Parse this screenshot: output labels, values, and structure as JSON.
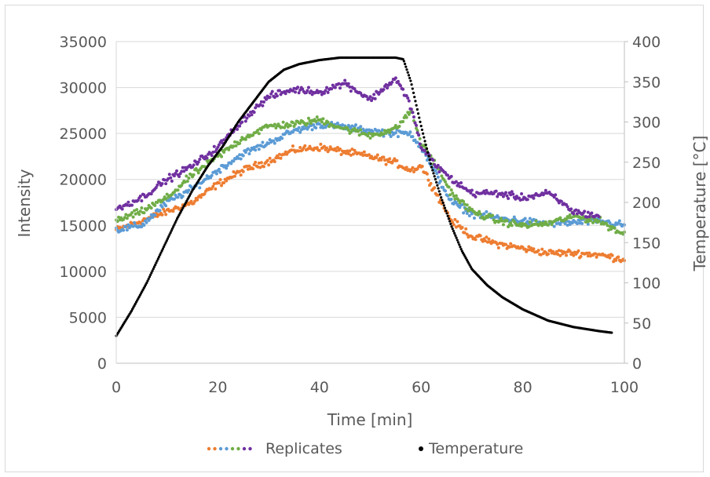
{
  "chart_data": {
    "type": "scatter",
    "title": "",
    "xlabel": "Time [min]",
    "ylabel": "Intensity",
    "y2label": "Temperature [°C]",
    "xlim": [
      0,
      100
    ],
    "ylim": [
      0,
      35000
    ],
    "y2lim": [
      0,
      400
    ],
    "x_ticks": [
      "0",
      "20",
      "40",
      "60",
      "80",
      "100"
    ],
    "y_ticks": [
      "0",
      "5000",
      "10000",
      "15000",
      "20000",
      "25000",
      "30000",
      "35000"
    ],
    "y2_ticks": [
      "0",
      "50",
      "100",
      "150",
      "200",
      "250",
      "300",
      "350",
      "400"
    ],
    "grid": "horizontal",
    "legend_position": "bottom",
    "legend": {
      "replicates": "Replicates",
      "temperature": "Temperature"
    },
    "colors": {
      "orange": "#ed7d31",
      "blue": "#5b9bd5",
      "green": "#70ad47",
      "purple": "#7030a0",
      "temperature": "#000000"
    },
    "series": [
      {
        "axis": "left",
        "color": "#ed7d31",
        "x": [
          0,
          5,
          10,
          15,
          20,
          25,
          30,
          35,
          40,
          45,
          50,
          55,
          58,
          60,
          63,
          66,
          70,
          75,
          80,
          85,
          90,
          95,
          100
        ],
        "y": [
          14500,
          15500,
          16500,
          17500,
          19500,
          21000,
          22000,
          23200,
          23500,
          23000,
          22500,
          21800,
          21000,
          21500,
          18500,
          15500,
          13800,
          13000,
          12500,
          12000,
          12000,
          11800,
          11300
        ]
      },
      {
        "axis": "left",
        "color": "#5b9bd5",
        "x": [
          0,
          5,
          10,
          15,
          20,
          25,
          30,
          35,
          40,
          45,
          50,
          55,
          58,
          60,
          63,
          66,
          70,
          75,
          80,
          85,
          90,
          95,
          100
        ],
        "y": [
          14500,
          15000,
          17500,
          19000,
          21000,
          22800,
          24000,
          25300,
          26000,
          25700,
          25300,
          25000,
          25000,
          23500,
          20500,
          17500,
          16300,
          15800,
          15500,
          15200,
          15300,
          15500,
          15000
        ]
      },
      {
        "axis": "left",
        "color": "#70ad47",
        "x": [
          0,
          5,
          10,
          15,
          20,
          25,
          30,
          35,
          40,
          45,
          50,
          55,
          58,
          60,
          63,
          66,
          70,
          75,
          80,
          85,
          90,
          95,
          100
        ],
        "y": [
          15500,
          16500,
          18000,
          20500,
          22500,
          24500,
          25800,
          26000,
          26500,
          25500,
          24800,
          25500,
          27500,
          24000,
          21500,
          18500,
          16500,
          15500,
          15000,
          15200,
          16000,
          15500,
          14000
        ]
      },
      {
        "axis": "left",
        "color": "#7030a0",
        "x": [
          0,
          5,
          10,
          15,
          20,
          25,
          30,
          35,
          40,
          45,
          50,
          55,
          58,
          60,
          63,
          66,
          70,
          75,
          80,
          85,
          90,
          95
        ],
        "y": [
          16800,
          18000,
          20000,
          21500,
          23500,
          26500,
          29000,
          29800,
          29500,
          30500,
          28700,
          31000,
          28000,
          23500,
          21500,
          20000,
          18500,
          18500,
          18000,
          18500,
          16500,
          16000
        ]
      },
      {
        "axis": "right",
        "color": "#000000",
        "x": [
          0,
          3,
          6,
          9,
          12,
          15,
          18,
          21,
          24,
          27,
          30,
          33,
          36,
          40,
          44,
          48,
          52,
          55,
          56.5,
          58,
          60,
          62,
          64,
          66,
          68,
          70,
          73,
          76,
          80,
          85,
          90,
          95,
          97.5
        ],
        "y": [
          34,
          65,
          100,
          140,
          180,
          215,
          245,
          270,
          300,
          325,
          350,
          365,
          372,
          377,
          380,
          380,
          380,
          380,
          378,
          350,
          295,
          245,
          205,
          170,
          140,
          117,
          97,
          82,
          67,
          53,
          45,
          40,
          38
        ]
      }
    ]
  }
}
